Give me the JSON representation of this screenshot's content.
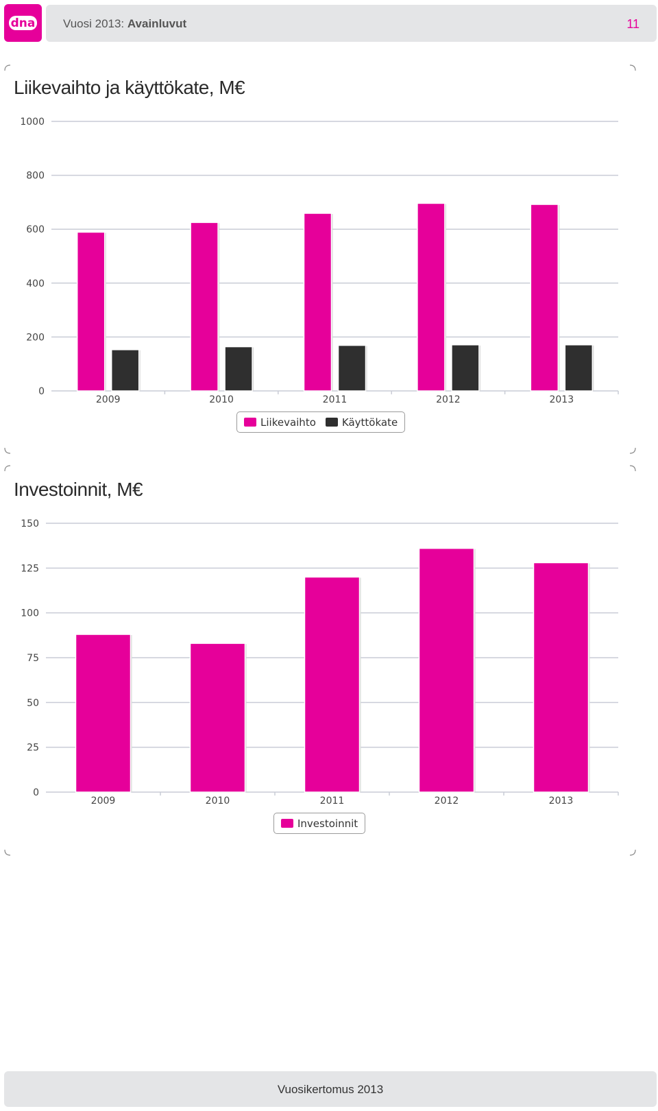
{
  "header": {
    "title_prefix": "Vuosi 2013:",
    "title_bold": "Avainluvut",
    "page_number": "11",
    "logo_text": "dna"
  },
  "colors": {
    "accent": "#e6009a",
    "dark_series": "#2f2f2f",
    "panel": "#e4e5e7"
  },
  "footer": {
    "text": "Vuosikertomus 2013"
  },
  "chart_data": [
    {
      "type": "bar",
      "title": "Liikevaihto ja käyttökate, M€",
      "categories": [
        "2009",
        "2010",
        "2011",
        "2012",
        "2013"
      ],
      "series": [
        {
          "name": "Liikevaihto",
          "color": "#e6009a",
          "values": [
            589,
            625,
            659,
            696,
            692
          ]
        },
        {
          "name": "Käyttökate",
          "color": "#2f2f2f",
          "values": [
            153,
            164,
            169,
            171,
            171
          ]
        }
      ],
      "ylim": [
        0,
        1000
      ],
      "yticks": [
        0,
        200,
        400,
        600,
        800,
        1000
      ],
      "grid": true,
      "legend": "bottom-center"
    },
    {
      "type": "bar",
      "title": "Investoinnit, M€",
      "categories": [
        "2009",
        "2010",
        "2011",
        "2012",
        "2013"
      ],
      "series": [
        {
          "name": "Investoinnit",
          "color": "#e6009a",
          "values": [
            88,
            83,
            120,
            136,
            128
          ]
        }
      ],
      "ylim": [
        0,
        150
      ],
      "yticks": [
        0,
        25,
        50,
        75,
        100,
        125,
        150
      ],
      "grid": true,
      "legend": "bottom-center"
    }
  ]
}
